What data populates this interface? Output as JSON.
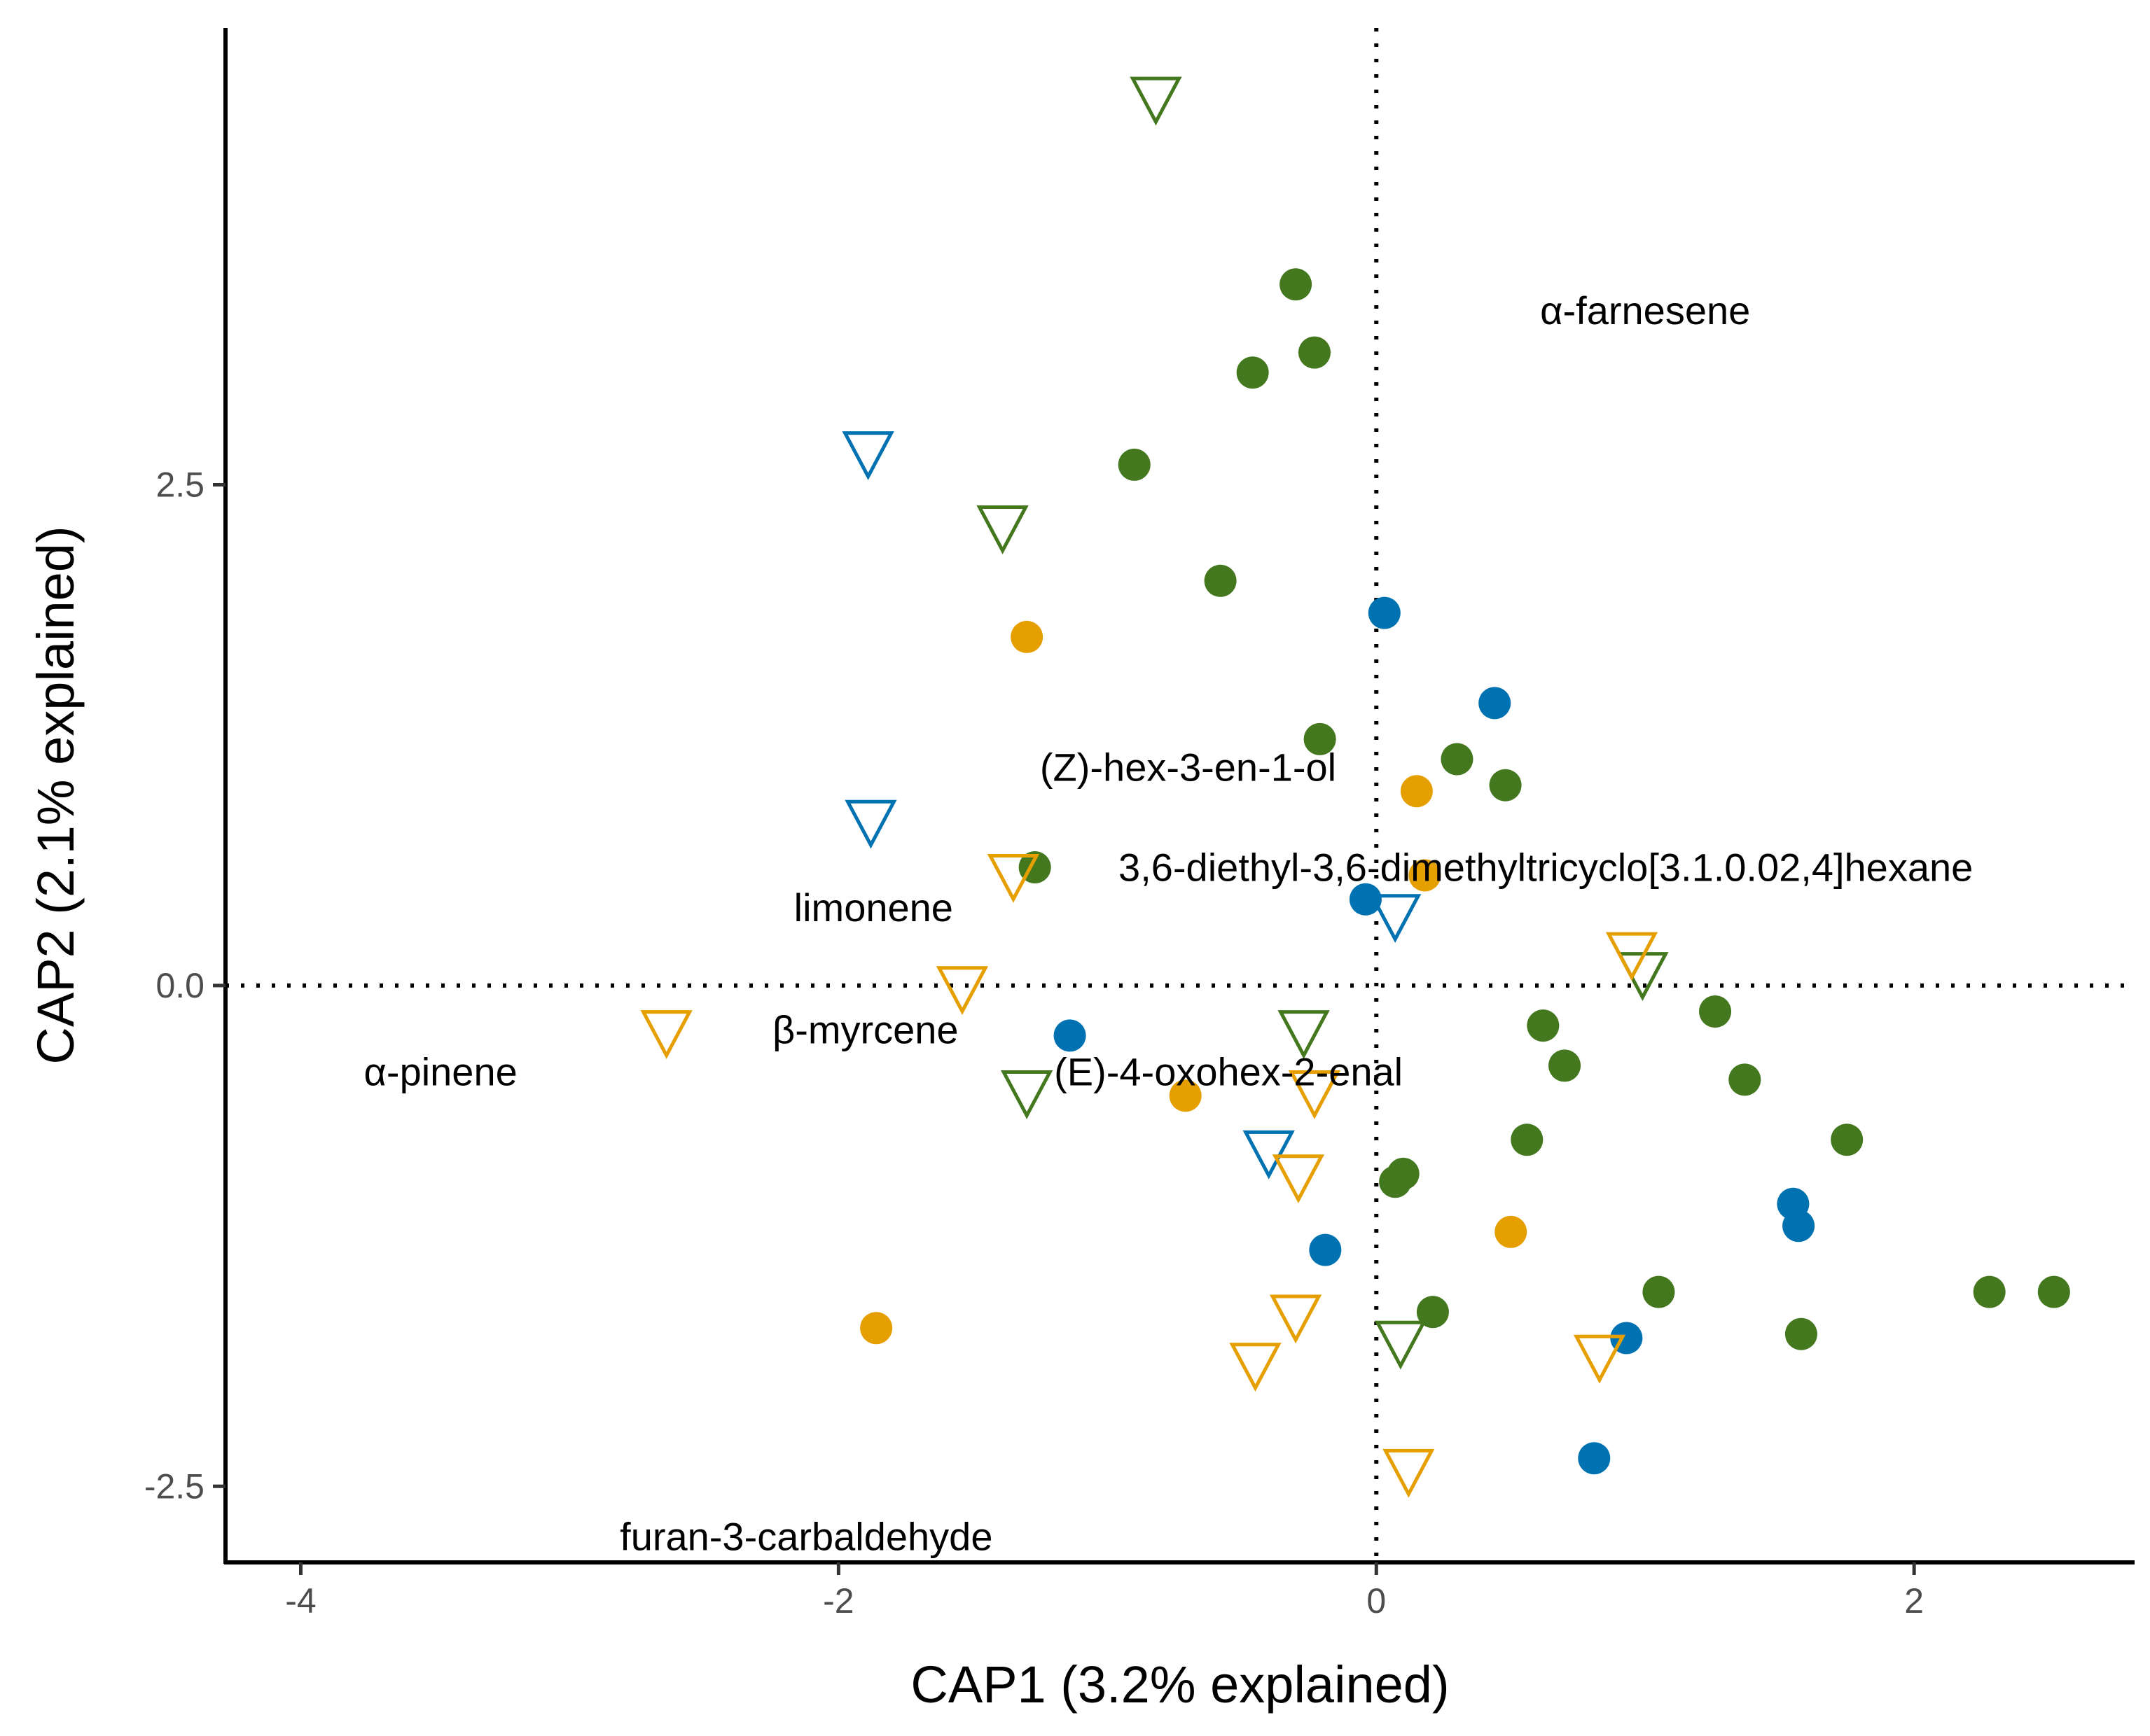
{
  "chart_data": {
    "type": "scatter",
    "title": "",
    "xlabel": "CAP1 (3.2% explained)",
    "ylabel": "CAP2 (2.1% explained)",
    "xlim": [
      -4.28,
      2.82
    ],
    "ylim": [
      -2.88,
      4.78
    ],
    "x_ticks": [
      -4,
      -2,
      0,
      2
    ],
    "x_tick_labels": [
      "-4",
      "-2",
      "0",
      "2"
    ],
    "y_ticks": [
      -2.5,
      0,
      2.5
    ],
    "y_tick_labels": [
      "-2.5",
      "0.0",
      "2.5"
    ],
    "grid": false,
    "legend": "none",
    "reference_lines": {
      "x": 0,
      "y": 0,
      "style": "dotted"
    },
    "colors": {
      "green": "#44781f",
      "blue": "#0072b2",
      "orange": "#e69f00"
    },
    "series": [
      {
        "color": "green",
        "shape": "circle",
        "points": [
          [
            -0.3,
            3.5
          ],
          [
            -0.23,
            3.16
          ],
          [
            -0.46,
            3.06
          ],
          [
            -0.9,
            2.6
          ],
          [
            -0.58,
            2.02
          ],
          [
            -0.21,
            1.23
          ],
          [
            0.3,
            1.13
          ],
          [
            0.48,
            1.0
          ],
          [
            -1.27,
            0.59
          ],
          [
            0.62,
            -0.2
          ],
          [
            0.7,
            -0.4
          ],
          [
            1.26,
            -0.13
          ],
          [
            1.37,
            -0.47
          ],
          [
            0.56,
            -0.77
          ],
          [
            1.75,
            -0.77
          ],
          [
            0.1,
            -0.94
          ],
          [
            0.07,
            -0.98
          ],
          [
            0.21,
            -1.63
          ],
          [
            1.05,
            -1.53
          ],
          [
            1.58,
            -1.74
          ],
          [
            2.28,
            -1.53
          ],
          [
            2.52,
            -1.53
          ]
        ]
      },
      {
        "color": "blue",
        "shape": "circle",
        "points": [
          [
            0.03,
            1.86
          ],
          [
            0.44,
            1.41
          ],
          [
            -0.04,
            0.43
          ],
          [
            -1.14,
            -0.25
          ],
          [
            -0.19,
            -1.32
          ],
          [
            1.55,
            -1.09
          ],
          [
            1.57,
            -1.2
          ],
          [
            0.93,
            -1.76
          ],
          [
            0.81,
            -2.36
          ]
        ]
      },
      {
        "color": "orange",
        "shape": "circle",
        "points": [
          [
            -1.3,
            1.74
          ],
          [
            0.15,
            0.97
          ],
          [
            0.18,
            0.55
          ],
          [
            -0.71,
            -0.55
          ],
          [
            0.5,
            -1.23
          ],
          [
            -1.86,
            -1.71
          ]
        ]
      },
      {
        "color": "green",
        "shape": "triangle-down-open",
        "points": [
          [
            -0.82,
            4.43
          ],
          [
            -1.39,
            2.29
          ],
          [
            0.99,
            0.06
          ],
          [
            -0.27,
            -0.23
          ],
          [
            -1.3,
            -0.53
          ],
          [
            0.09,
            -1.78
          ]
        ]
      },
      {
        "color": "blue",
        "shape": "triangle-down-open",
        "points": [
          [
            -1.89,
            2.66
          ],
          [
            -1.88,
            0.82
          ],
          [
            0.07,
            0.35
          ],
          [
            -0.4,
            -0.83
          ]
        ]
      },
      {
        "color": "orange",
        "shape": "triangle-down-open",
        "points": [
          [
            -1.35,
            0.55
          ],
          [
            -1.54,
            -0.01
          ],
          [
            -2.64,
            -0.23
          ],
          [
            -0.23,
            -0.53
          ],
          [
            0.95,
            0.16
          ],
          [
            -0.29,
            -0.95
          ],
          [
            -0.3,
            -1.65
          ],
          [
            -0.45,
            -1.89
          ],
          [
            0.83,
            -1.85
          ],
          [
            0.12,
            -2.42
          ]
        ]
      }
    ],
    "variable_labels": [
      {
        "text": "α-farnesene",
        "x": 1.0,
        "y": 3.37
      },
      {
        "text": "(Z)-hex-3-en-1-ol",
        "x": -0.7,
        "y": 1.09
      },
      {
        "text": "3,6-diethyl-3,6-dimethyltricyclo[3.1.0.02,4]hexane",
        "x": 0.63,
        "y": 0.59
      },
      {
        "text": "limonene",
        "x": -1.87,
        "y": 0.39
      },
      {
        "text": "β-myrcene",
        "x": -1.9,
        "y": -0.22
      },
      {
        "text": "α-pinene",
        "x": -3.48,
        "y": -0.43
      },
      {
        "text": "(E)-4-oxohex-2-enal",
        "x": -0.55,
        "y": -0.43
      },
      {
        "text": "furan-3-carbaldehyde",
        "x": -2.12,
        "y": -2.75
      }
    ]
  }
}
